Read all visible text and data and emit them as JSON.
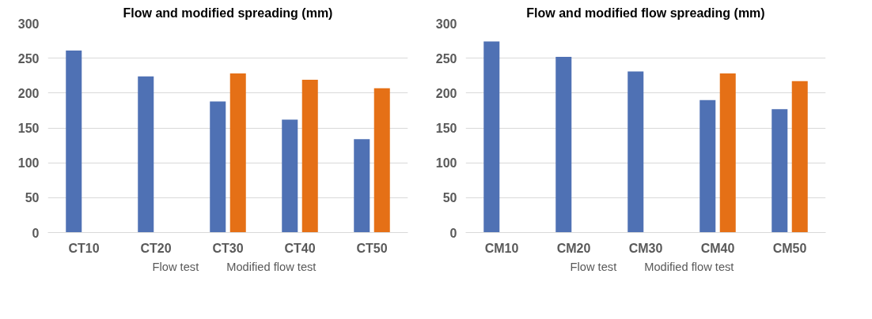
{
  "chart_data": [
    {
      "type": "bar",
      "title": "Flow and modified spreading (mm)",
      "categories": [
        "CT10",
        "CT20",
        "CT30",
        "CT40",
        "CT50"
      ],
      "series": [
        {
          "name": "Flow test",
          "color": "#4f71b4",
          "values": [
            261,
            224,
            188,
            162,
            134
          ]
        },
        {
          "name": "Modified flow test",
          "color": "#e57016",
          "values": [
            null,
            null,
            228,
            219,
            207
          ]
        }
      ],
      "ylim": [
        0,
        300
      ],
      "yticks": [
        0,
        50,
        100,
        150,
        200,
        250,
        300
      ],
      "grid": "y",
      "legend": "bottom"
    },
    {
      "type": "bar",
      "title": "Flow and modified flow spreading (mm)",
      "categories": [
        "CM10",
        "CM20",
        "CM30",
        "CM40",
        "CM50"
      ],
      "series": [
        {
          "name": "Flow test",
          "color": "#4f71b4",
          "values": [
            274,
            252,
            231,
            190,
            177
          ]
        },
        {
          "name": "Modified flow test",
          "color": "#e57016",
          "values": [
            null,
            null,
            null,
            228,
            217
          ]
        }
      ],
      "ylim": [
        0,
        300
      ],
      "yticks": [
        0,
        50,
        100,
        150,
        200,
        250,
        300
      ],
      "grid": "y",
      "legend": "bottom"
    }
  ]
}
